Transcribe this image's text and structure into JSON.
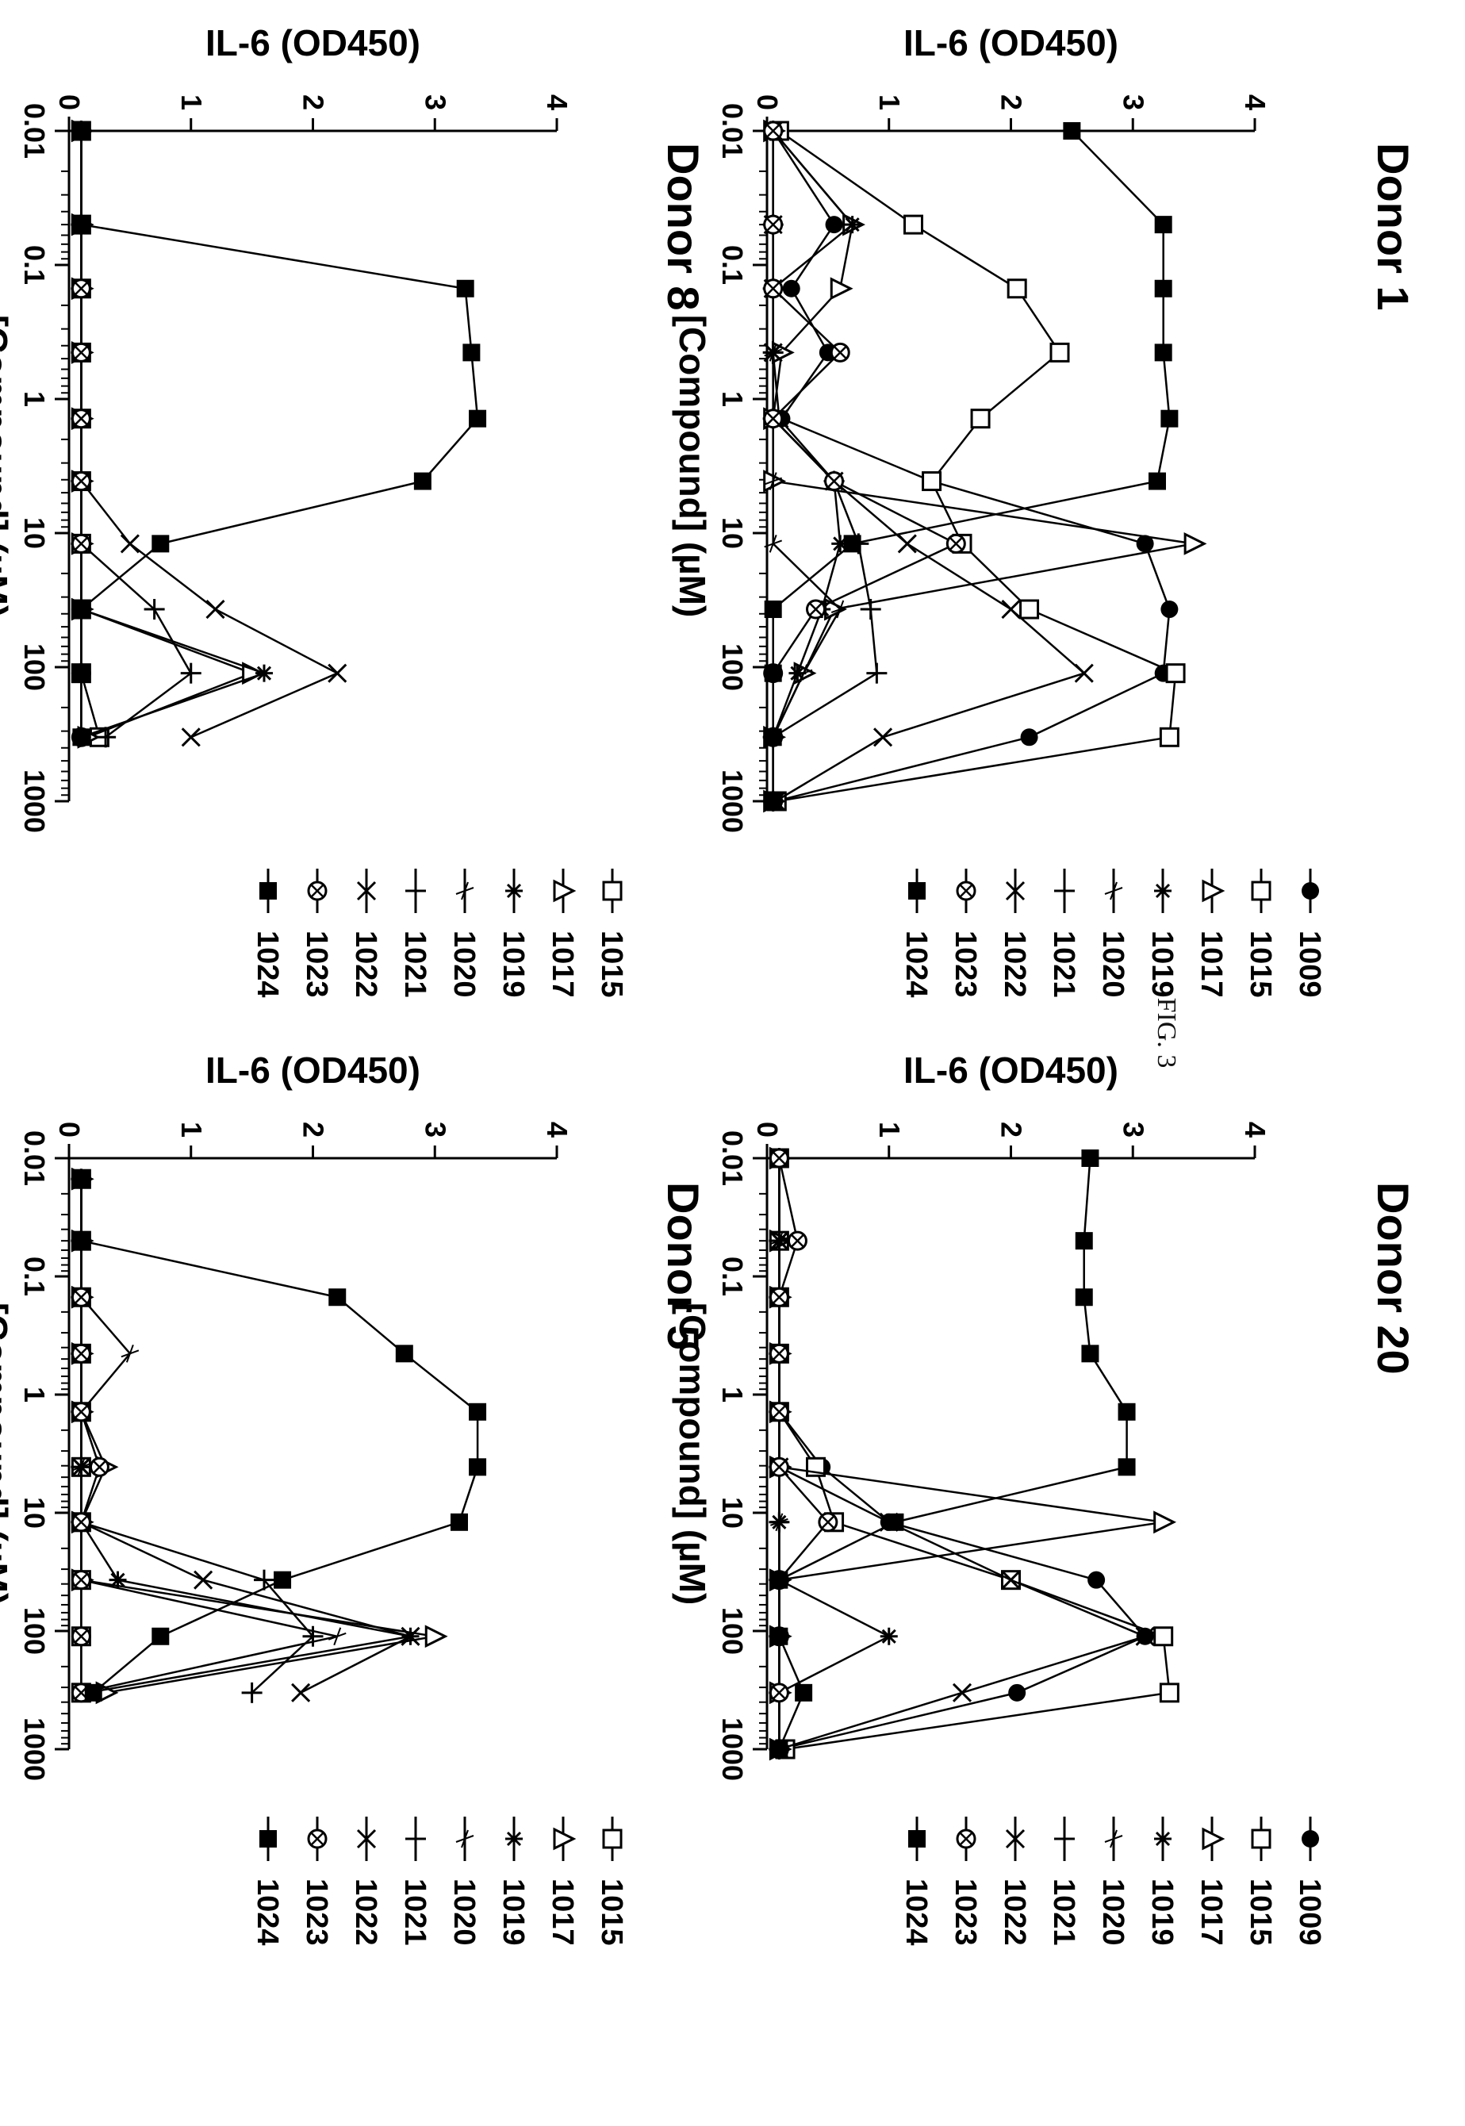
{
  "figure_caption": "FIG. 3",
  "chart_data": [
    {
      "type": "line",
      "title": "Donor 1",
      "xlabel": "[Compound] (µM)",
      "ylabel": "IL-6 (OD450)",
      "xscale": "log",
      "xlim": [
        0.01,
        1000
      ],
      "ylim": [
        0,
        4
      ],
      "xticks": [
        "0.01",
        "0.1",
        "1",
        "10",
        "100",
        "1000"
      ],
      "yticks": [
        "0",
        "1",
        "2",
        "3",
        "4"
      ],
      "legend_position": "right",
      "series": [
        {
          "name": "1009",
          "marker": "filled-circle",
          "x": [
            0.01,
            0.05,
            0.15,
            0.45,
            1.4,
            4.1,
            12,
            37,
            111,
            333,
            1000
          ],
          "y": [
            0.05,
            0.55,
            0.2,
            0.5,
            0.12,
            1.35,
            3.1,
            3.3,
            3.25,
            2.15,
            0.07
          ]
        },
        {
          "name": "1015",
          "marker": "open-square",
          "x": [
            0.01,
            0.05,
            0.15,
            0.45,
            1.4,
            4.1,
            12,
            37,
            111,
            333,
            1000
          ],
          "y": [
            0.1,
            1.2,
            2.05,
            2.4,
            1.75,
            1.35,
            1.6,
            2.15,
            3.35,
            3.3,
            0.08
          ]
        },
        {
          "name": "1017",
          "marker": "open-triangle",
          "x": [
            0.01,
            0.05,
            0.15,
            0.45,
            1.4,
            4.1,
            12,
            37,
            111,
            333,
            1000
          ],
          "y": [
            0.05,
            0.7,
            0.6,
            0.12,
            0.05,
            0.05,
            3.5,
            0.55,
            0.3,
            0.05,
            0.05
          ]
        },
        {
          "name": "1019",
          "marker": "asterisk",
          "x": [
            0.01,
            0.05,
            0.15,
            0.45,
            1.4,
            4.1,
            12,
            37,
            111,
            333,
            1000
          ],
          "y": [
            0.05,
            0.7,
            0.05,
            0.05,
            0.05,
            0.55,
            0.6,
            0.45,
            0.25,
            0.05,
            0.05
          ]
        },
        {
          "name": "1020",
          "marker": "thin-cross",
          "x": [
            0.01,
            0.05,
            0.15,
            0.45,
            1.4,
            4.1,
            12,
            37,
            111,
            333,
            1000
          ],
          "y": [
            0.05,
            0.05,
            0.05,
            0.05,
            0.05,
            0.05,
            0.05,
            0.6,
            0.3,
            0.05,
            0.05
          ]
        },
        {
          "name": "1021",
          "marker": "plus",
          "x": [
            0.01,
            0.05,
            0.15,
            0.45,
            1.4,
            4.1,
            12,
            37,
            111,
            333,
            1000
          ],
          "y": [
            0.05,
            0.05,
            0.05,
            0.05,
            0.05,
            0.55,
            0.75,
            0.85,
            0.9,
            0.05,
            0.05
          ]
        },
        {
          "name": "1022",
          "marker": "x",
          "x": [
            0.01,
            0.05,
            0.15,
            0.45,
            1.4,
            4.1,
            12,
            37,
            111,
            333,
            1000
          ],
          "y": [
            0.05,
            0.05,
            0.05,
            0.05,
            0.1,
            0.55,
            1.15,
            2.0,
            2.6,
            0.95,
            0.07
          ]
        },
        {
          "name": "1023",
          "marker": "circle-cross",
          "x": [
            0.01,
            0.05,
            0.15,
            0.45,
            1.4,
            4.1,
            12,
            37,
            111,
            333,
            1000
          ],
          "y": [
            0.05,
            0.05,
            0.05,
            0.6,
            0.05,
            0.55,
            1.55,
            0.4,
            0.05,
            0.05,
            0.05
          ]
        },
        {
          "name": "1024",
          "marker": "filled-square",
          "x": [
            0.01,
            0.05,
            0.15,
            0.45,
            1.4,
            4.1,
            12,
            37,
            111,
            333,
            1000
          ],
          "y": [
            2.5,
            3.25,
            3.25,
            3.25,
            3.3,
            3.2,
            0.7,
            0.05,
            0.05,
            0.05,
            0.05
          ]
        }
      ]
    },
    {
      "type": "line",
      "title": "Donor 20",
      "xlabel": "[Compound] (µM)",
      "ylabel": "IL-6 (OD450)",
      "xscale": "log",
      "xlim": [
        0.01,
        1000
      ],
      "ylim": [
        0,
        4
      ],
      "xticks": [
        "0.01",
        "0.1",
        "1",
        "10",
        "100",
        "1000"
      ],
      "yticks": [
        "0",
        "1",
        "2",
        "3",
        "4"
      ],
      "legend_position": "right",
      "series": [
        {
          "name": "1009",
          "marker": "filled-circle",
          "x": [
            0.01,
            0.05,
            0.15,
            0.45,
            1.4,
            4.1,
            12,
            37,
            111,
            333,
            1000
          ],
          "y": [
            0.1,
            0.1,
            0.1,
            0.1,
            0.1,
            0.45,
            1.0,
            2.7,
            3.1,
            2.05,
            0.1
          ]
        },
        {
          "name": "1015",
          "marker": "open-square",
          "x": [
            0.01,
            0.05,
            0.15,
            0.45,
            1.4,
            4.1,
            12,
            37,
            111,
            333,
            1000
          ],
          "y": [
            0.1,
            0.1,
            0.1,
            0.1,
            0.1,
            0.4,
            0.55,
            2.0,
            3.25,
            3.3,
            0.15
          ]
        },
        {
          "name": "1017",
          "marker": "open-triangle",
          "x": [
            0.01,
            0.05,
            0.15,
            0.45,
            1.4,
            4.1,
            12,
            37,
            111,
            333,
            1000
          ],
          "y": [
            0.1,
            0.1,
            0.1,
            0.1,
            0.1,
            0.1,
            3.25,
            0.1,
            0.1,
            0.1,
            0.1
          ]
        },
        {
          "name": "1019",
          "marker": "asterisk",
          "x": [
            0.01,
            0.05,
            0.15,
            0.45,
            1.4,
            4.1,
            12,
            37,
            111,
            333,
            1000
          ],
          "y": [
            0.1,
            0.1,
            0.1,
            0.1,
            0.1,
            0.1,
            0.1,
            0.1,
            1.0,
            0.1,
            0.1
          ]
        },
        {
          "name": "1020",
          "marker": "thin-cross",
          "x": [
            0.01,
            0.05,
            0.15,
            0.45,
            1.4,
            4.1,
            12,
            37,
            111,
            333,
            1000
          ],
          "y": [
            0.1,
            0.1,
            0.1,
            0.1,
            0.1,
            0.1,
            0.1,
            0.1,
            0.1,
            0.1,
            0.1
          ]
        },
        {
          "name": "1021",
          "marker": "plus",
          "x": [
            0.01,
            0.05,
            0.15,
            0.45,
            1.4,
            4.1,
            12,
            37,
            111,
            333,
            1000
          ],
          "y": [
            0.1,
            0.1,
            0.1,
            0.1,
            0.1,
            0.1,
            0.1,
            0.1,
            0.1,
            0.1,
            0.1
          ]
        },
        {
          "name": "1022",
          "marker": "x",
          "x": [
            0.01,
            0.05,
            0.15,
            0.45,
            1.4,
            4.1,
            12,
            37,
            111,
            333,
            1000
          ],
          "y": [
            0.1,
            0.1,
            0.1,
            0.1,
            0.1,
            0.1,
            1.0,
            2.0,
            3.1,
            1.6,
            0.1
          ]
        },
        {
          "name": "1023",
          "marker": "circle-cross",
          "x": [
            0.01,
            0.05,
            0.15,
            0.45,
            1.4,
            4.1,
            12,
            37,
            111,
            333,
            1000
          ],
          "y": [
            0.1,
            0.25,
            0.1,
            0.1,
            0.1,
            0.1,
            0.5,
            0.1,
            0.1,
            0.1,
            0.1
          ]
        },
        {
          "name": "1024",
          "marker": "filled-square",
          "x": [
            0.01,
            0.05,
            0.15,
            0.45,
            1.4,
            4.1,
            12,
            37,
            111,
            333,
            1000
          ],
          "y": [
            2.65,
            2.6,
            2.6,
            2.65,
            2.95,
            2.95,
            1.05,
            0.1,
            0.1,
            0.3,
            0.1
          ]
        }
      ]
    },
    {
      "type": "line",
      "title": "Donor 8",
      "xlabel": "[Compound] (µM)",
      "ylabel": "IL-6 (OD450)",
      "xscale": "log",
      "xlim": [
        0.01,
        1000
      ],
      "ylim": [
        0,
        4
      ],
      "xticks": [
        "0.01",
        "0.1",
        "1",
        "10",
        "100",
        "1000"
      ],
      "yticks": [
        "0",
        "1",
        "2",
        "3",
        "4"
      ],
      "legend_position": "right",
      "series": [
        {
          "name": "1015",
          "marker": "open-square",
          "x": [
            0.01,
            0.05,
            0.15,
            0.45,
            1.4,
            4.1,
            12,
            37,
            111,
            333
          ],
          "y": [
            0.1,
            0.1,
            0.1,
            0.1,
            0.1,
            0.1,
            0.1,
            0.1,
            0.1,
            0.25
          ]
        },
        {
          "name": "1017",
          "marker": "open-triangle",
          "x": [
            0.01,
            0.05,
            0.15,
            0.45,
            1.4,
            4.1,
            12,
            37,
            111,
            333
          ],
          "y": [
            0.1,
            0.1,
            0.1,
            0.1,
            0.1,
            0.1,
            0.1,
            0.1,
            1.5,
            0.15
          ]
        },
        {
          "name": "1019",
          "marker": "asterisk",
          "x": [
            0.01,
            0.05,
            0.15,
            0.45,
            1.4,
            4.1,
            12,
            37,
            111,
            333
          ],
          "y": [
            0.1,
            0.1,
            0.1,
            0.1,
            0.1,
            0.1,
            0.1,
            0.1,
            1.6,
            0.1
          ]
        },
        {
          "name": "1020",
          "marker": "thin-cross",
          "x": [
            0.01,
            0.05,
            0.15,
            0.45,
            1.4,
            4.1,
            12,
            37,
            111,
            333
          ],
          "y": [
            0.1,
            0.1,
            0.1,
            0.1,
            0.1,
            0.1,
            0.1,
            0.1,
            0.1,
            0.1
          ]
        },
        {
          "name": "1021",
          "marker": "plus",
          "x": [
            0.01,
            0.05,
            0.15,
            0.45,
            1.4,
            4.1,
            12,
            37,
            111,
            333
          ],
          "y": [
            0.1,
            0.1,
            0.1,
            0.1,
            0.1,
            0.1,
            0.1,
            0.7,
            1.0,
            0.3
          ]
        },
        {
          "name": "1022",
          "marker": "x",
          "x": [
            0.01,
            0.05,
            0.15,
            0.45,
            1.4,
            4.1,
            12,
            37,
            111,
            333
          ],
          "y": [
            0.1,
            0.1,
            0.1,
            0.1,
            0.1,
            0.1,
            0.5,
            1.2,
            2.2,
            1.0
          ]
        },
        {
          "name": "1023",
          "marker": "circle-cross",
          "x": [
            0.01,
            0.05,
            0.15,
            0.45,
            1.4,
            4.1,
            12,
            37,
            111,
            333
          ],
          "y": [
            0.1,
            0.1,
            0.1,
            0.1,
            0.1,
            0.1,
            0.1,
            0.1,
            0.1,
            0.1
          ]
        },
        {
          "name": "1024",
          "marker": "filled-square",
          "x": [
            0.01,
            0.05,
            0.15,
            0.45,
            1.4,
            4.1,
            12,
            37,
            111,
            333
          ],
          "y": [
            0.1,
            0.1,
            3.25,
            3.3,
            3.35,
            2.9,
            0.75,
            0.1,
            0.1,
            0.1
          ]
        }
      ]
    },
    {
      "type": "line",
      "title": "Donor 5",
      "xlabel": "[Compound] (µM)",
      "ylabel": "IL-6 (OD450)",
      "xscale": "log",
      "xlim": [
        0.01,
        1000
      ],
      "ylim": [
        0,
        4
      ],
      "xticks": [
        "0.01",
        "0.1",
        "1",
        "10",
        "100",
        "1000"
      ],
      "yticks": [
        "0",
        "1",
        "2",
        "3",
        "4"
      ],
      "legend_position": "right",
      "series": [
        {
          "name": "1015",
          "marker": "open-square",
          "x": [
            0.015,
            0.05,
            0.15,
            0.45,
            1.4,
            4.1,
            12,
            37,
            111,
            333
          ],
          "y": [
            0.1,
            0.1,
            0.1,
            0.1,
            0.1,
            0.1,
            0.1,
            0.1,
            0.1,
            0.1
          ]
        },
        {
          "name": "1017",
          "marker": "open-triangle",
          "x": [
            0.015,
            0.05,
            0.15,
            0.45,
            1.4,
            4.1,
            12,
            37,
            111,
            333
          ],
          "y": [
            0.1,
            0.1,
            0.1,
            0.1,
            0.1,
            0.3,
            0.1,
            0.1,
            3.0,
            0.3
          ]
        },
        {
          "name": "1019",
          "marker": "asterisk",
          "x": [
            0.015,
            0.05,
            0.15,
            0.45,
            1.4,
            4.1,
            12,
            37,
            111,
            333
          ],
          "y": [
            0.1,
            0.1,
            0.1,
            0.1,
            0.1,
            0.1,
            0.1,
            0.4,
            2.8,
            0.15
          ]
        },
        {
          "name": "1020",
          "marker": "thin-cross",
          "x": [
            0.015,
            0.05,
            0.15,
            0.45,
            1.4,
            4.1,
            12,
            37,
            111,
            333
          ],
          "y": [
            0.1,
            0.1,
            0.1,
            0.5,
            0.1,
            0.1,
            0.1,
            0.1,
            2.2,
            0.1
          ]
        },
        {
          "name": "1021",
          "marker": "plus",
          "x": [
            0.015,
            0.05,
            0.15,
            0.45,
            1.4,
            4.1,
            12,
            37,
            111,
            333
          ],
          "y": [
            0.1,
            0.1,
            0.1,
            0.1,
            0.1,
            0.1,
            0.1,
            1.6,
            2.0,
            1.5
          ]
        },
        {
          "name": "1022",
          "marker": "x",
          "x": [
            0.015,
            0.05,
            0.15,
            0.45,
            1.4,
            4.1,
            12,
            37,
            111,
            333
          ],
          "y": [
            0.1,
            0.1,
            0.1,
            0.1,
            0.1,
            0.1,
            0.1,
            1.1,
            2.8,
            1.9
          ]
        },
        {
          "name": "1023",
          "marker": "circle-cross",
          "x": [
            0.015,
            0.05,
            0.15,
            0.45,
            1.4,
            4.1,
            12,
            37,
            111,
            333
          ],
          "y": [
            0.1,
            0.1,
            0.1,
            0.1,
            0.1,
            0.25,
            0.1,
            0.1,
            0.1,
            0.1
          ]
        },
        {
          "name": "1024",
          "marker": "filled-square",
          "x": [
            0.015,
            0.05,
            0.15,
            0.45,
            1.4,
            4.1,
            12,
            37,
            111,
            333
          ],
          "y": [
            0.1,
            0.1,
            2.2,
            2.75,
            3.35,
            3.35,
            3.2,
            1.75,
            0.75,
            0.2
          ]
        }
      ]
    }
  ]
}
